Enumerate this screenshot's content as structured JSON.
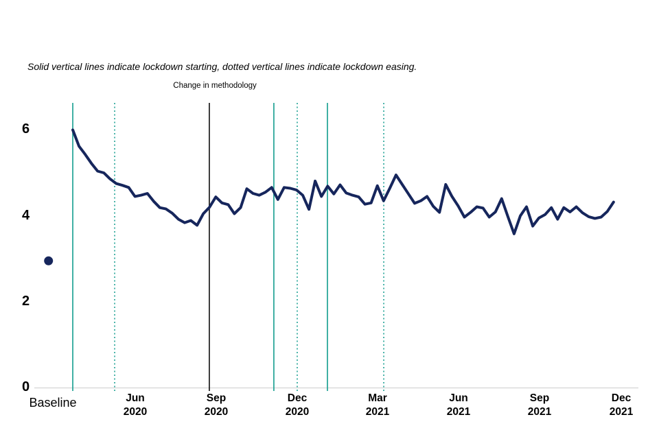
{
  "note": "Solid vertical lines indicate lockdown starting, dotted vertical lines indicate lockdown easing.",
  "annotation": "Change in methodology",
  "colors": {
    "series_navy": "#16265c",
    "lockdown_teal": "#1fa294",
    "methodology_black": "#1a1a1a",
    "axis_gray": "#d9d9d9"
  },
  "chart_data": {
    "type": "line",
    "title": "",
    "xlabel": "",
    "ylabel": "",
    "note": "Solid vertical lines indicate lockdown starting, dotted vertical lines indicate lockdown easing.",
    "annotation": "Change in methodology",
    "grid": false,
    "legend": "none",
    "ylim": [
      0,
      6.6
    ],
    "y_ticks": [
      0,
      2,
      4,
      6
    ],
    "x_tick_labels": [
      "Baseline",
      "Jun\n2020",
      "Sep\n2020",
      "Dec\n2020",
      "Mar\n2021",
      "Jun\n2021",
      "Sep\n2021",
      "Dec\n2021"
    ],
    "baseline_point": {
      "label": "Baseline",
      "week": -3.9,
      "value": 2.95
    },
    "series": [
      {
        "name": "weekly score",
        "cadence": "weekly",
        "values": [
          6.0,
          5.62,
          5.43,
          5.22,
          5.04,
          5.0,
          4.86,
          4.75,
          4.71,
          4.66,
          4.45,
          4.48,
          4.52,
          4.34,
          4.19,
          4.16,
          4.06,
          3.92,
          3.84,
          3.89,
          3.78,
          4.05,
          4.2,
          4.44,
          4.3,
          4.26,
          4.05,
          4.19,
          4.63,
          4.52,
          4.48,
          4.55,
          4.66,
          4.38,
          4.66,
          4.64,
          4.6,
          4.48,
          4.15,
          4.81,
          4.45,
          4.69,
          4.51,
          4.72,
          4.53,
          4.48,
          4.44,
          4.27,
          4.3,
          4.7,
          4.35,
          4.64,
          4.95,
          4.73,
          4.51,
          4.29,
          4.35,
          4.45,
          4.22,
          4.08,
          4.73,
          4.45,
          4.23,
          3.97,
          4.08,
          4.21,
          4.18,
          3.97,
          4.09,
          4.4,
          3.98,
          3.58,
          4.0,
          4.21,
          3.76,
          3.95,
          4.03,
          4.19,
          3.92,
          4.19,
          4.09,
          4.21,
          4.07,
          3.98,
          3.94,
          3.97,
          4.1,
          4.32
        ]
      }
    ],
    "events": {
      "lockdown_start_weeks": [
        0,
        32.35,
        40.97
      ],
      "lockdown_easing_weeks": [
        6.74,
        36.11,
        50.03
      ],
      "methodology_change_week": 21.97
    }
  }
}
